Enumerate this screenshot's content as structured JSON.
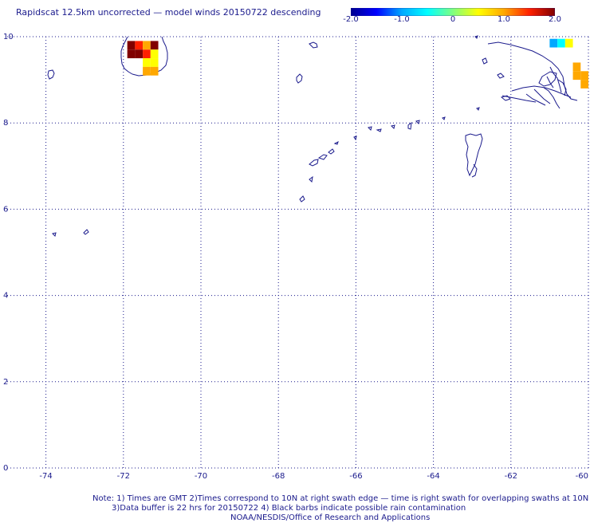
{
  "title": "Rapidscat 12.5km uncorrected — model winds 20150722 descending",
  "colorbar": {
    "ticks": [
      "-2.0",
      "-1.0",
      "0",
      "1.0",
      "2.0"
    ],
    "tick_values": [
      -2.0,
      -1.0,
      0,
      1.0,
      2.0
    ],
    "range": [
      -2.0,
      2.0
    ],
    "stops": [
      "#00008f",
      "#0000ff",
      "#00a8ff",
      "#00ffff",
      "#7fff7f",
      "#ffff00",
      "#ffa800",
      "#ff2000",
      "#800000"
    ]
  },
  "map": {
    "lon_range": [
      -75,
      -60
    ],
    "lat_range": [
      0,
      10
    ],
    "x_ticks": [
      "-74",
      "-72",
      "-70",
      "-68",
      "-66",
      "-64",
      "-62",
      "-60"
    ],
    "x_tick_values": [
      -74,
      -72,
      -70,
      -68,
      -66,
      -64,
      -62,
      -60
    ],
    "y_ticks": [
      "0",
      "2",
      "4",
      "6",
      "8",
      "10"
    ],
    "y_tick_values": [
      0,
      2,
      4,
      6,
      8,
      10
    ],
    "grid": true,
    "coast_color": "#1a1a8c",
    "cells": [
      {
        "lon": -71.8,
        "lat": 9.8,
        "value": 2.0
      },
      {
        "lon": -71.6,
        "lat": 9.8,
        "value": 1.4
      },
      {
        "lon": -71.4,
        "lat": 9.8,
        "value": 1.2
      },
      {
        "lon": -71.2,
        "lat": 9.8,
        "value": 1.8
      },
      {
        "lon": -71.8,
        "lat": 9.6,
        "value": 2.0
      },
      {
        "lon": -71.6,
        "lat": 9.6,
        "value": 2.0
      },
      {
        "lon": -71.4,
        "lat": 9.6,
        "value": 1.5
      },
      {
        "lon": -71.2,
        "lat": 9.6,
        "value": 0.7
      },
      {
        "lon": -71.4,
        "lat": 9.4,
        "value": 0.3
      },
      {
        "lon": -71.2,
        "lat": 9.4,
        "value": 0.7
      },
      {
        "lon": -71.4,
        "lat": 9.2,
        "value": 1.1
      },
      {
        "lon": -71.2,
        "lat": 9.2,
        "value": 1.2
      },
      {
        "lon": -60.9,
        "lat": 9.85,
        "value": -0.8
      },
      {
        "lon": -60.7,
        "lat": 9.85,
        "value": -0.4
      },
      {
        "lon": -60.5,
        "lat": 9.85,
        "value": 0.3
      },
      {
        "lon": -60.3,
        "lat": 9.3,
        "value": 0.8
      },
      {
        "lon": -60.3,
        "lat": 9.1,
        "value": 0.9
      },
      {
        "lon": -60.1,
        "lat": 9.1,
        "value": 0.8
      },
      {
        "lon": -60.1,
        "lat": 8.9,
        "value": 0.9
      }
    ]
  },
  "notes": {
    "line1": "Note: 1) Times are GMT 2)Times correspond to 10N at right swath edge — time is right swath for overlapping swaths at 10N",
    "line2": "3)Data buffer is 22 hrs for 20150722 4) Black barbs indicate possible rain contamination",
    "line3": "NOAA/NESDIS/Office of Research and Applications"
  }
}
